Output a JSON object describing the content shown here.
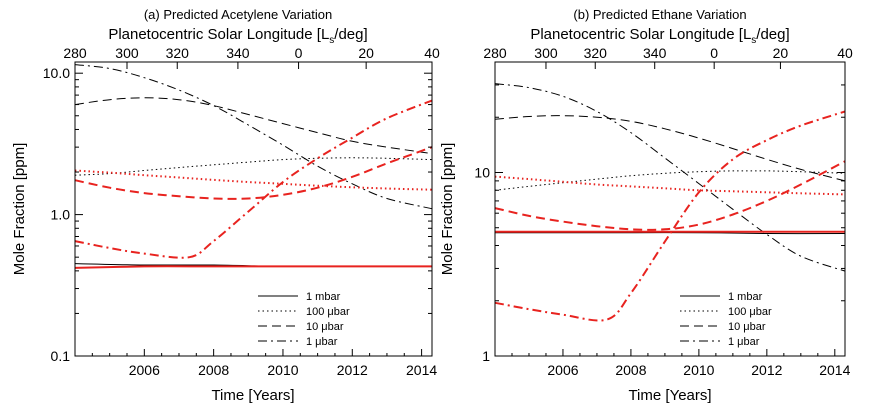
{
  "chart_data": [
    {
      "type": "line",
      "panel": "a",
      "title": "(a) Predicted Acetylene Variation",
      "top_axis_label": "Planetocentric Solar Longitude [L",
      "top_axis_sub": "s",
      "top_axis_suffix": "/deg]",
      "xlabel": "Time [Years]",
      "ylabel": "Mole Fraction [ppm]",
      "yscale": "log",
      "xlim": [
        2004.0,
        2014.3
      ],
      "ylim": [
        0.1,
        12
      ],
      "xticks": [
        2006,
        2008,
        2010,
        2012,
        2014
      ],
      "xtick_labels": [
        "2006",
        "2008",
        "2010",
        "2012",
        "2014"
      ],
      "yticks": [
        0.1,
        1.0,
        10.0
      ],
      "ytick_labels": [
        "0.1",
        "1.0",
        "10.0"
      ],
      "top_ticks": [
        {
          "year": 2004.0,
          "label": "280"
        },
        {
          "year": 2005.5,
          "label": "300"
        },
        {
          "year": 2006.95,
          "label": "320"
        },
        {
          "year": 2008.7,
          "label": "340"
        },
        {
          "year": 2010.45,
          "label": "0"
        },
        {
          "year": 2012.4,
          "label": "20"
        },
        {
          "year": 2014.3,
          "label": "40"
        }
      ],
      "legend": [
        "1 mbar",
        "100 μbar",
        "10 μbar",
        "1 μbar"
      ],
      "series": [
        {
          "name": "1 mbar model A",
          "color": "#000000",
          "style": "solid",
          "x": [
            2004.0,
            2006.0,
            2008.0,
            2010.0,
            2012.0,
            2014.3
          ],
          "values": [
            0.45,
            0.44,
            0.44,
            0.43,
            0.43,
            0.43
          ]
        },
        {
          "name": "100 μbar model A",
          "color": "#000000",
          "style": "dotted",
          "x": [
            2004.0,
            2005.0,
            2006.0,
            2007.0,
            2008.0,
            2009.0,
            2010.0,
            2011.0,
            2012.0,
            2013.0,
            2014.3
          ],
          "values": [
            1.9,
            1.95,
            2.05,
            2.15,
            2.25,
            2.35,
            2.45,
            2.5,
            2.52,
            2.5,
            2.45
          ]
        },
        {
          "name": "10 μbar model A",
          "color": "#000000",
          "style": "dashed",
          "x": [
            2004.0,
            2005.0,
            2006.0,
            2007.0,
            2008.0,
            2009.0,
            2010.0,
            2011.0,
            2012.0,
            2013.0,
            2014.3
          ],
          "values": [
            6.0,
            6.5,
            6.7,
            6.5,
            5.9,
            5.1,
            4.4,
            3.8,
            3.3,
            3.0,
            2.7
          ]
        },
        {
          "name": "1 μbar model A",
          "color": "#000000",
          "style": "dashdot",
          "x": [
            2004.0,
            2005.0,
            2006.0,
            2007.0,
            2008.0,
            2009.0,
            2010.0,
            2011.0,
            2012.0,
            2013.0,
            2014.3
          ],
          "values": [
            11.5,
            10.8,
            9.3,
            7.6,
            5.9,
            4.3,
            3.1,
            2.2,
            1.65,
            1.3,
            1.1
          ]
        },
        {
          "name": "1 mbar model B",
          "color": "#e8231f",
          "style": "solid",
          "x": [
            2004.0,
            2006.0,
            2008.0,
            2010.0,
            2012.0,
            2014.3
          ],
          "values": [
            0.42,
            0.43,
            0.43,
            0.43,
            0.43,
            0.43
          ]
        },
        {
          "name": "100 μbar model B",
          "color": "#e8231f",
          "style": "dotted",
          "x": [
            2004.0,
            2005.0,
            2006.0,
            2007.0,
            2008.0,
            2009.0,
            2010.0,
            2011.0,
            2012.0,
            2013.0,
            2014.3
          ],
          "values": [
            2.05,
            1.98,
            1.9,
            1.83,
            1.76,
            1.7,
            1.65,
            1.6,
            1.56,
            1.53,
            1.5
          ]
        },
        {
          "name": "10 μbar model B",
          "color": "#e8231f",
          "style": "dashed",
          "x": [
            2004.0,
            2005.0,
            2006.0,
            2007.0,
            2008.0,
            2009.0,
            2010.0,
            2011.0,
            2012.0,
            2013.0,
            2014.3
          ],
          "values": [
            1.75,
            1.55,
            1.42,
            1.35,
            1.3,
            1.3,
            1.38,
            1.55,
            1.85,
            2.3,
            3.0
          ]
        },
        {
          "name": "1 μbar model B",
          "color": "#e8231f",
          "style": "dashdot",
          "x": [
            2004.0,
            2005.0,
            2006.0,
            2007.3,
            2008.0,
            2009.0,
            2010.0,
            2011.0,
            2012.0,
            2013.0,
            2014.3
          ],
          "values": [
            0.65,
            0.58,
            0.53,
            0.5,
            0.65,
            1.05,
            1.7,
            2.5,
            3.5,
            4.8,
            6.4
          ]
        }
      ]
    },
    {
      "type": "line",
      "panel": "b",
      "title": "(b) Predicted Ethane Variation",
      "top_axis_label": "Planetocentric Solar Longitude [L",
      "top_axis_sub": "s",
      "top_axis_suffix": "/deg]",
      "xlabel": "Time [Years]",
      "ylabel": "Mole Fraction [ppm]",
      "yscale": "log",
      "xlim": [
        2004.0,
        2014.3
      ],
      "ylim": [
        1,
        40
      ],
      "xticks": [
        2006,
        2008,
        2010,
        2012,
        2014
      ],
      "xtick_labels": [
        "2006",
        "2008",
        "2010",
        "2012",
        "2014"
      ],
      "yticks": [
        1,
        10
      ],
      "ytick_labels": [
        "1",
        "10"
      ],
      "top_ticks": [
        {
          "year": 2004.0,
          "label": "280"
        },
        {
          "year": 2005.5,
          "label": "300"
        },
        {
          "year": 2006.95,
          "label": "320"
        },
        {
          "year": 2008.7,
          "label": "340"
        },
        {
          "year": 2010.45,
          "label": "0"
        },
        {
          "year": 2012.4,
          "label": "20"
        },
        {
          "year": 2014.3,
          "label": "40"
        }
      ],
      "legend": [
        "1 mbar",
        "100 μbar",
        "10 μbar",
        "1 μbar"
      ],
      "series": [
        {
          "name": "1 mbar model A",
          "color": "#000000",
          "style": "solid",
          "x": [
            2004.0,
            2006.0,
            2008.0,
            2010.0,
            2012.0,
            2014.3
          ],
          "values": [
            4.7,
            4.7,
            4.7,
            4.7,
            4.65,
            4.65
          ]
        },
        {
          "name": "100 μbar model A",
          "color": "#000000",
          "style": "dotted",
          "x": [
            2004.0,
            2005.0,
            2006.0,
            2007.0,
            2008.0,
            2009.0,
            2010.0,
            2011.0,
            2012.0,
            2013.0,
            2014.3
          ],
          "values": [
            8.0,
            8.4,
            8.8,
            9.2,
            9.6,
            9.9,
            10.1,
            10.2,
            10.2,
            10.1,
            9.9
          ]
        },
        {
          "name": "10 μbar model A",
          "color": "#000000",
          "style": "dashed",
          "x": [
            2004.0,
            2005.0,
            2006.0,
            2007.0,
            2008.0,
            2009.0,
            2010.0,
            2011.0,
            2012.0,
            2013.0,
            2014.3
          ],
          "values": [
            19.5,
            20.2,
            20.4,
            20.0,
            19.0,
            17.3,
            15.4,
            13.5,
            11.8,
            10.4,
            9.0
          ]
        },
        {
          "name": "1 μbar model A",
          "color": "#000000",
          "style": "dashdot",
          "x": [
            2004.0,
            2005.0,
            2006.0,
            2007.0,
            2008.0,
            2009.0,
            2010.0,
            2011.0,
            2012.0,
            2013.0,
            2014.3
          ],
          "values": [
            30.5,
            29.0,
            26.0,
            21.5,
            16.5,
            12.0,
            8.7,
            6.3,
            4.6,
            3.5,
            2.9
          ]
        },
        {
          "name": "1 mbar model B",
          "color": "#e8231f",
          "style": "solid",
          "x": [
            2004.0,
            2006.0,
            2008.0,
            2010.0,
            2012.0,
            2014.3
          ],
          "values": [
            4.75,
            4.75,
            4.75,
            4.75,
            4.75,
            4.75
          ]
        },
        {
          "name": "100 μbar model B",
          "color": "#e8231f",
          "style": "dotted",
          "x": [
            2004.0,
            2005.0,
            2006.0,
            2007.0,
            2008.0,
            2009.0,
            2010.0,
            2011.0,
            2012.0,
            2013.0,
            2014.3
          ],
          "values": [
            9.5,
            9.2,
            8.9,
            8.6,
            8.4,
            8.2,
            8.0,
            7.9,
            7.8,
            7.7,
            7.6
          ]
        },
        {
          "name": "10 μbar model B",
          "color": "#e8231f",
          "style": "dashed",
          "x": [
            2004.0,
            2005.0,
            2006.0,
            2007.0,
            2008.0,
            2009.0,
            2010.0,
            2011.0,
            2012.0,
            2013.0,
            2014.3
          ],
          "values": [
            6.4,
            5.8,
            5.4,
            5.1,
            4.9,
            4.9,
            5.2,
            5.9,
            7.0,
            8.6,
            11.5
          ]
        },
        {
          "name": "1 μbar model B",
          "color": "#e8231f",
          "style": "dashdot",
          "x": [
            2004.0,
            2005.0,
            2006.0,
            2007.3,
            2008.0,
            2009.0,
            2010.0,
            2011.0,
            2012.0,
            2013.0,
            2014.3
          ],
          "values": [
            1.95,
            1.8,
            1.68,
            1.58,
            2.2,
            4.2,
            7.8,
            11.8,
            15.0,
            18.0,
            21.5
          ]
        }
      ]
    }
  ]
}
